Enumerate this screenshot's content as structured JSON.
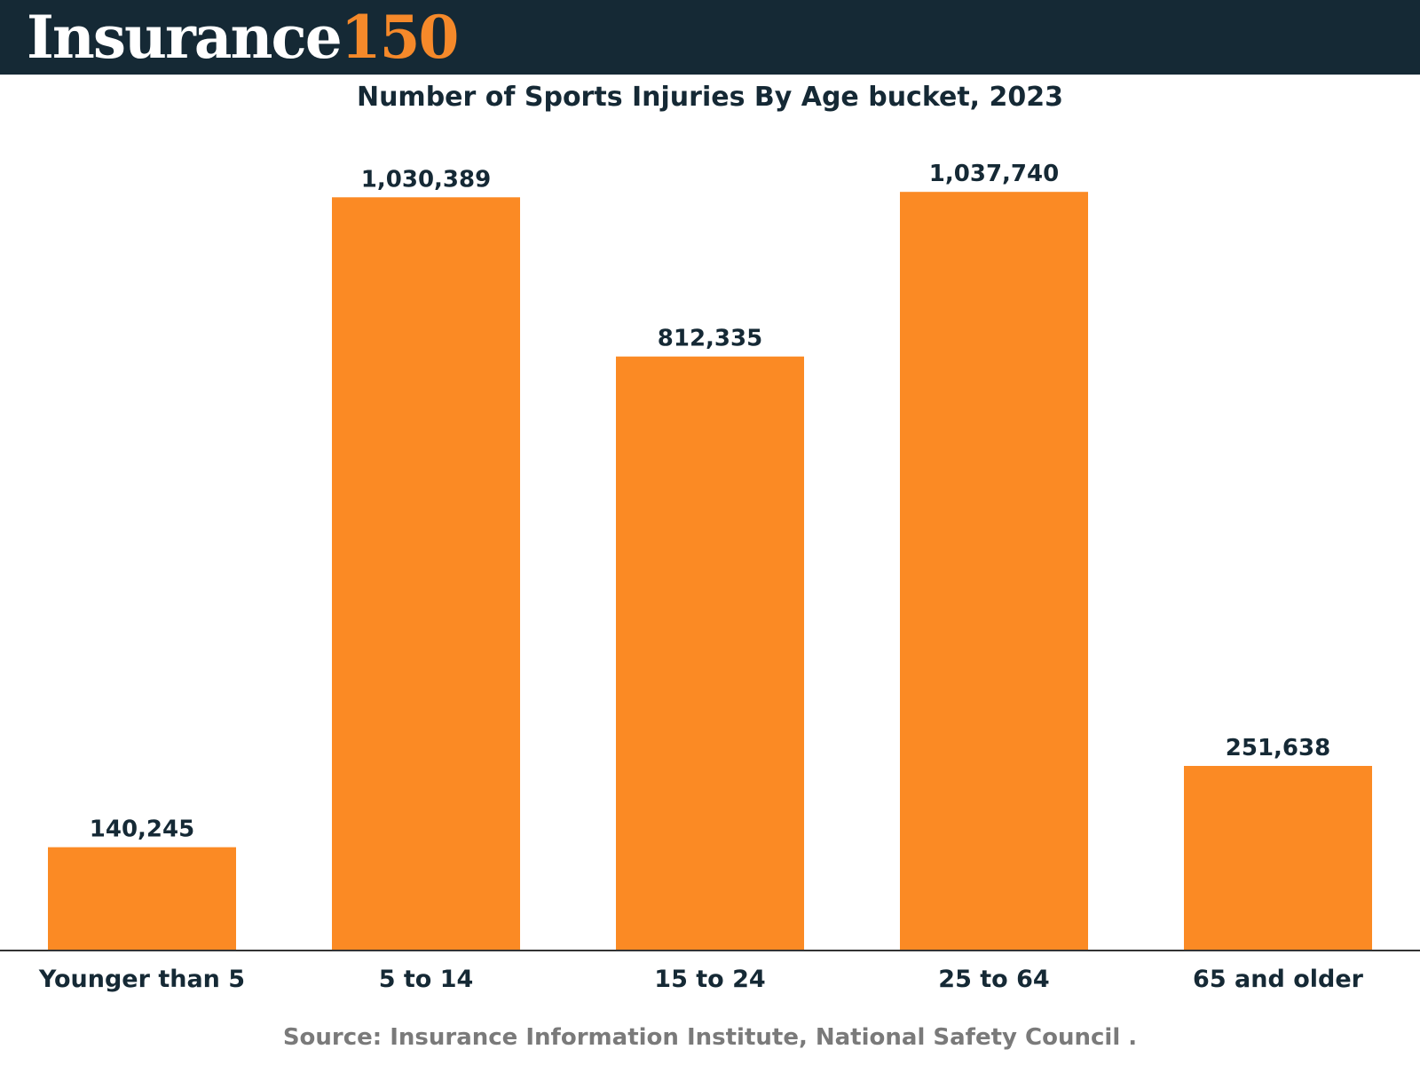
{
  "header": {
    "logo_word": "Insurance",
    "logo_number": "150",
    "background": "#152935",
    "accent": "#f5892a"
  },
  "source_text": "Source: Insurance Information Institute, National Safety Council .",
  "chart_data": {
    "type": "bar",
    "title": "Number of Sports Injuries By Age bucket, 2023",
    "xlabel": "",
    "ylabel": "",
    "categories": [
      "Younger than 5",
      "5 to 14",
      "15 to 24",
      "25 to 64",
      "65 and older"
    ],
    "values": [
      140245,
      1030389,
      812335,
      1037740,
      251638
    ],
    "value_labels": [
      "140,245",
      "1,030,389",
      "812,335",
      "1,037,740",
      "251,638"
    ],
    "ylim": [
      0,
      1100000
    ],
    "grid": false,
    "legend": "none",
    "bar_color": "#fb8a24",
    "axis_color": "#333333",
    "text_color": "#152935"
  }
}
